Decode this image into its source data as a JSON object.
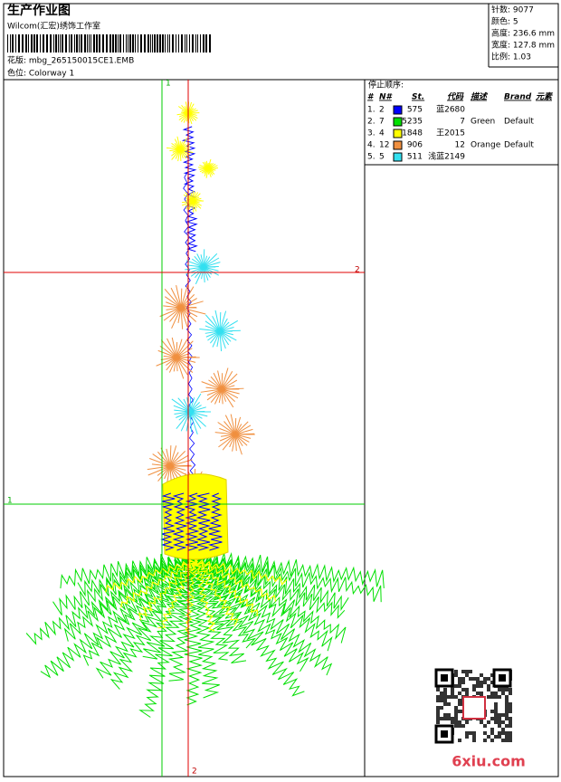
{
  "header": {
    "title": "生产作业图",
    "company": "Wilcom(汇宏)绣饰工作室",
    "design": "花版: mbg_265150015CE1.EMB",
    "colorway": "色位: Colorway 1"
  },
  "stats": [
    "针数: 9077",
    "颜色: 5",
    "高度: 236.6 mm",
    "宽度: 127.8 mm",
    "比例: 1.03"
  ],
  "stop_sequence": {
    "title": "停止顺序:",
    "headers": [
      "#",
      "N#",
      "St.",
      "代码",
      "描述",
      "Brand",
      "元素"
    ],
    "rows": [
      {
        "no": "1.",
        "n": "2",
        "color": "#0000ff",
        "st": "575",
        "code": "蓝2680"
      },
      {
        "no": "2.",
        "n": "7",
        "color": "#00e000",
        "st": "5235",
        "code": "7",
        "desc": "Green",
        "brand": "Default"
      },
      {
        "no": "3.",
        "n": "4",
        "color": "#ffff00",
        "st": "1848",
        "code": "王2015"
      },
      {
        "no": "4.",
        "n": "12",
        "color": "#f09040",
        "st": "906",
        "code": "12",
        "desc": "Orange",
        "brand": "Default"
      },
      {
        "no": "5.",
        "n": "5",
        "color": "#33e0f0",
        "st": "511",
        "code": "浅蓝2149"
      }
    ]
  },
  "guides": {
    "v_green": "1",
    "h_red": "2",
    "h_green": "1",
    "v_red": "2"
  },
  "watermark": "6xiu.com"
}
